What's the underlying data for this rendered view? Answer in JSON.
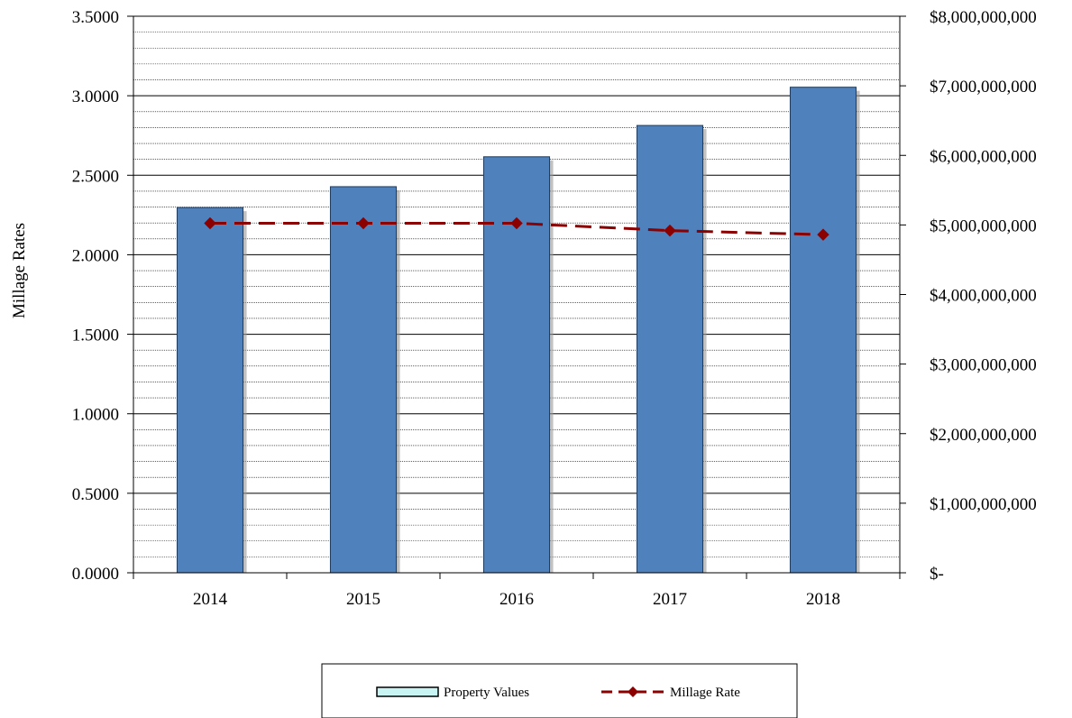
{
  "chart_data": {
    "type": "bar",
    "categories": [
      "2014",
      "2015",
      "2016",
      "2017",
      "2018"
    ],
    "series": [
      {
        "name": "Property Values",
        "type": "bar",
        "axis": "right",
        "values": [
          5250000000,
          5550000000,
          5980000000,
          6430000000,
          6980000000
        ]
      },
      {
        "name": "Millage Rate",
        "type": "line",
        "axis": "left",
        "values": [
          2.1981,
          2.1981,
          2.1981,
          2.1521,
          2.1263
        ]
      }
    ],
    "ylabel": "Millage Rates",
    "ylim": [
      0,
      3.5
    ],
    "y_ticks": [
      "0.0000",
      "0.5000",
      "1.0000",
      "1.5000",
      "2.0000",
      "2.5000",
      "3.0000",
      "3.5000"
    ],
    "y2lim": [
      0,
      8000000000
    ],
    "y2_ticks": [
      "$-",
      "$1,000,000,000",
      "$2,000,000,000",
      "$3,000,000,000",
      "$4,000,000,000",
      "$5,000,000,000",
      "$6,000,000,000",
      "$7,000,000,000",
      "$8,000,000,000"
    ],
    "grid": true,
    "legend_position": "bottom",
    "colors": {
      "bar_fill": "#4f81bd",
      "bar_stroke": "#1f3b5c",
      "bar_shadow": "#9a9a9a",
      "line": "#8b0000",
      "legend_bar_swatch": "#c8f4f4",
      "gridline": "#000000"
    }
  }
}
